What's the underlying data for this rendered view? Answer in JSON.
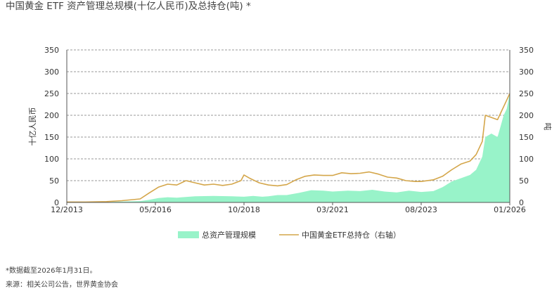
{
  "title": "中国黄金 ETF 资产管理总规模(十亿人民币)及总持仓(吨) *",
  "footnote": "*数据截至2026年1月31日。",
  "source": "来源：相关公司公告，世界黄金协会",
  "colors": {
    "aum_fill": "#98f3c9",
    "holdings_line": "#d4a64a",
    "grid": "#9a9a9a",
    "axis": "#555555"
  },
  "chart_data": {
    "type": "area",
    "title": "中国黄金 ETF 资产管理总规模(十亿人民币)及总持仓(吨) *",
    "x_range": [
      "2013-12",
      "2026-01"
    ],
    "x_ticks": [
      "12/2013",
      "05/2016",
      "10/2018",
      "03/2021",
      "08/2023",
      "01/2026"
    ],
    "y_left": {
      "label": "十亿人民币",
      "min": 0,
      "max": 350,
      "ticks": [
        0,
        50,
        100,
        150,
        200,
        250,
        300,
        350
      ]
    },
    "y_right": {
      "label": "吨",
      "min": 0,
      "max": 350,
      "ticks": [
        0,
        50,
        100,
        150,
        200,
        250,
        300,
        350
      ]
    },
    "grid": "horizontal-dashed",
    "legend_position": "bottom",
    "series": [
      {
        "name": "总资产管理规模",
        "type": "area",
        "axis": "left",
        "color": "#98f3c9",
        "points": [
          [
            "2013-12",
            1
          ],
          [
            "2014-06",
            1
          ],
          [
            "2015-01",
            1
          ],
          [
            "2015-06",
            2
          ],
          [
            "2015-12",
            3
          ],
          [
            "2016-03",
            6
          ],
          [
            "2016-06",
            10
          ],
          [
            "2016-09",
            12
          ],
          [
            "2016-12",
            11
          ],
          [
            "2017-06",
            14
          ],
          [
            "2017-12",
            15
          ],
          [
            "2018-06",
            14
          ],
          [
            "2018-10",
            13
          ],
          [
            "2019-01",
            15
          ],
          [
            "2019-04",
            13
          ],
          [
            "2019-06",
            14
          ],
          [
            "2019-09",
            17
          ],
          [
            "2019-12",
            17
          ],
          [
            "2020-04",
            22
          ],
          [
            "2020-08",
            28
          ],
          [
            "2020-12",
            27
          ],
          [
            "2021-03",
            25
          ],
          [
            "2021-08",
            27
          ],
          [
            "2021-12",
            26
          ],
          [
            "2022-04",
            29
          ],
          [
            "2022-08",
            25
          ],
          [
            "2022-12",
            23
          ],
          [
            "2023-04",
            27
          ],
          [
            "2023-08",
            24
          ],
          [
            "2023-12",
            26
          ],
          [
            "2024-03",
            35
          ],
          [
            "2024-06",
            48
          ],
          [
            "2024-10",
            58
          ],
          [
            "2024-12",
            63
          ],
          [
            "2025-02",
            75
          ],
          [
            "2025-04",
            105
          ],
          [
            "2025-05",
            150
          ],
          [
            "2025-07",
            158
          ],
          [
            "2025-09",
            150
          ],
          [
            "2025-10",
            175
          ],
          [
            "2025-11",
            200
          ],
          [
            "2025-12",
            215
          ],
          [
            "2026-01",
            250
          ]
        ]
      },
      {
        "name": "中国黄金ETF总持仓（右轴）",
        "type": "line",
        "axis": "right",
        "color": "#d4a64a",
        "points": [
          [
            "2013-12",
            1
          ],
          [
            "2014-06",
            1
          ],
          [
            "2015-01",
            2
          ],
          [
            "2015-06",
            4
          ],
          [
            "2015-12",
            8
          ],
          [
            "2016-03",
            22
          ],
          [
            "2016-06",
            35
          ],
          [
            "2016-09",
            42
          ],
          [
            "2016-12",
            40
          ],
          [
            "2017-03",
            50
          ],
          [
            "2017-06",
            45
          ],
          [
            "2017-09",
            40
          ],
          [
            "2017-12",
            42
          ],
          [
            "2018-03",
            39
          ],
          [
            "2018-06",
            42
          ],
          [
            "2018-09",
            50
          ],
          [
            "2018-10",
            63
          ],
          [
            "2018-12",
            55
          ],
          [
            "2019-03",
            45
          ],
          [
            "2019-06",
            40
          ],
          [
            "2019-09",
            38
          ],
          [
            "2019-12",
            41
          ],
          [
            "2020-03",
            52
          ],
          [
            "2020-06",
            60
          ],
          [
            "2020-09",
            63
          ],
          [
            "2020-12",
            62
          ],
          [
            "2021-03",
            62
          ],
          [
            "2021-06",
            68
          ],
          [
            "2021-09",
            66
          ],
          [
            "2021-12",
            67
          ],
          [
            "2022-03",
            70
          ],
          [
            "2022-06",
            65
          ],
          [
            "2022-09",
            58
          ],
          [
            "2022-12",
            56
          ],
          [
            "2023-03",
            50
          ],
          [
            "2023-06",
            48
          ],
          [
            "2023-08",
            48
          ],
          [
            "2023-12",
            52
          ],
          [
            "2024-03",
            60
          ],
          [
            "2024-06",
            75
          ],
          [
            "2024-09",
            88
          ],
          [
            "2024-12",
            95
          ],
          [
            "2025-02",
            110
          ],
          [
            "2025-04",
            140
          ],
          [
            "2025-05",
            200
          ],
          [
            "2025-07",
            195
          ],
          [
            "2025-09",
            190
          ],
          [
            "2025-10",
            205
          ],
          [
            "2025-12",
            235
          ],
          [
            "2026-01",
            250
          ]
        ]
      }
    ]
  }
}
